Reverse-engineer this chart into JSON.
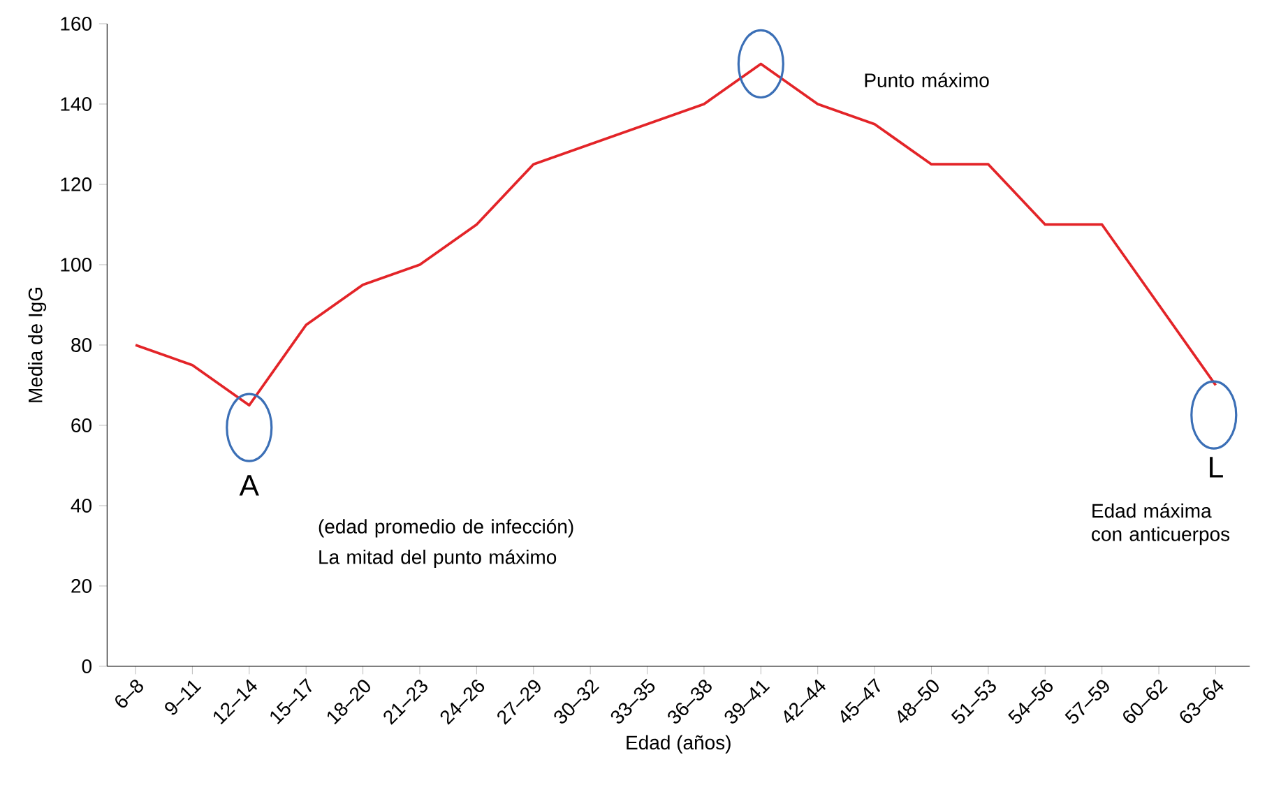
{
  "chart_data": {
    "type": "line",
    "xlabel": "Edad (años)",
    "ylabel": "Media de IgG",
    "categories": [
      "6–8",
      "9–11",
      "12–14",
      "15–17",
      "18–20",
      "21–23",
      "24–26",
      "27–29",
      "30–32",
      "33–35",
      "36–38",
      "39–41",
      "42–44",
      "45–47",
      "48–50",
      "51–53",
      "54–56",
      "57–59",
      "60–62",
      "63–64"
    ],
    "series": [
      {
        "color": "#e32428",
        "values": [
          80,
          75,
          65,
          85,
          95,
          100,
          110,
          125,
          130,
          135,
          140,
          150,
          140,
          135,
          125,
          125,
          110,
          110,
          90,
          70
        ]
      }
    ],
    "ylim": [
      0,
      160
    ],
    "yticks": [
      0,
      20,
      40,
      60,
      80,
      100,
      120,
      140,
      160
    ],
    "marker": "none",
    "line_style": "solid",
    "annotations": [
      {
        "text": "A",
        "x": "12–14",
        "y": 65
      },
      {
        "text": "L",
        "x": "63–64",
        "y": 70
      },
      "Punto máximo",
      "(edad promedio de infección)",
      "La mitad del punto máximo",
      "Edad máxima con anticuerpos"
    ]
  }
}
